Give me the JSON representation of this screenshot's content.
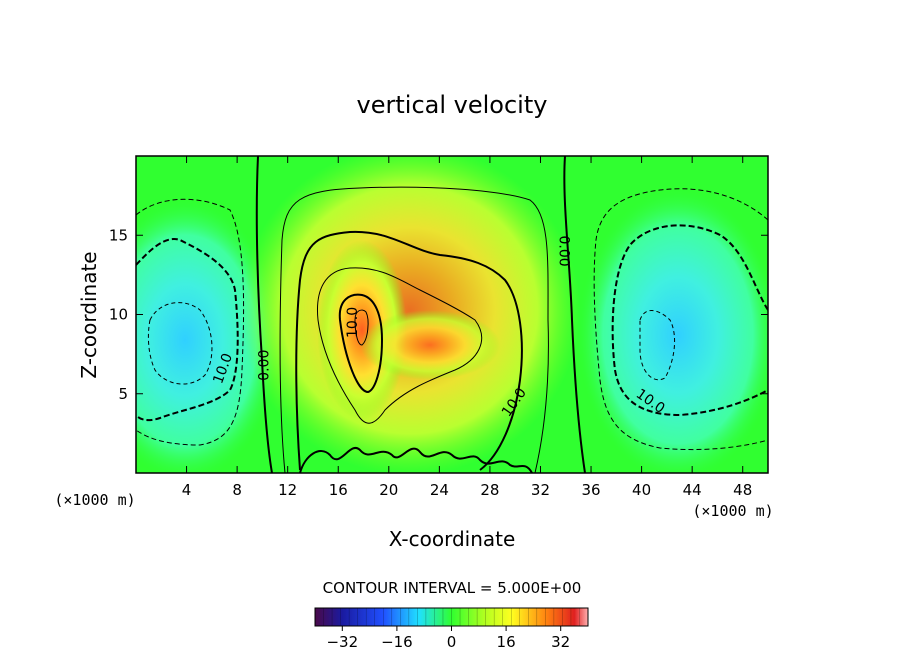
{
  "chart_data": {
    "type": "heatmap",
    "title": "vertical velocity",
    "xlabel": "X-coordinate",
    "ylabel": "Z-coordinate",
    "x_unit": "(×1000 m)",
    "y_unit": "(×1000 m)",
    "xlim": [
      0,
      50
    ],
    "ylim": [
      0,
      20
    ],
    "x_ticks": [
      4,
      8,
      12,
      16,
      20,
      24,
      28,
      32,
      36,
      40,
      44,
      48
    ],
    "y_ticks": [
      5,
      10,
      15
    ],
    "contour_interval_label": "CONTOUR INTERVAL = 5.000E+00",
    "contour_labels": [
      {
        "text": "10.0",
        "x": 17.5,
        "y": 9.5
      },
      {
        "text": "10.0",
        "x": 30.2,
        "y": 4.3
      },
      {
        "text": "0.00",
        "x": 10.5,
        "y": 6.8
      },
      {
        "text": "0.00",
        "x": 33.5,
        "y": 14.0
      },
      {
        "text": "10.0",
        "x": 7.2,
        "y": 6.5
      },
      {
        "text": "10.0",
        "x": 40.5,
        "y": 4.3
      }
    ],
    "colorbar": {
      "ticks": [
        -32,
        -16,
        0,
        16,
        32
      ],
      "tick_labels": [
        "−32",
        "−16",
        "0",
        "16",
        "32"
      ],
      "range": [
        -40,
        40
      ]
    },
    "features": [
      {
        "name": "updraft",
        "center_x": 17.5,
        "center_z": 9.5,
        "peak": 30
      },
      {
        "name": "downdraft-left",
        "center_x": 4.5,
        "center_z": 8.5,
        "peak": -14
      },
      {
        "name": "downdraft-right",
        "center_x": 42.5,
        "center_z": 8.5,
        "peak": -14
      }
    ]
  }
}
